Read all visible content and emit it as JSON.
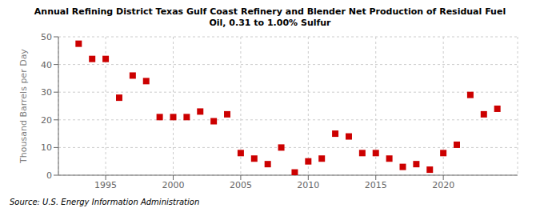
{
  "chart_data": {
    "type": "scatter",
    "title": "Annual Refining District Texas Gulf Coast Refinery and Blender Net Production of Residual Fuel\nOil, 0.31 to 1.00% Sulfur",
    "y_label": "Thousand Barrels per Day",
    "annotation": "Source: U.S. Energy Information Administration",
    "x": [
      1993,
      1994,
      1995,
      1996,
      1997,
      1998,
      1999,
      2000,
      2001,
      2002,
      2003,
      2004,
      2005,
      2006,
      2007,
      2008,
      2009,
      2010,
      2011,
      2012,
      2013,
      2014,
      2015,
      2016,
      2017,
      2018,
      2019,
      2020,
      2021,
      2022,
      2023,
      2024
    ],
    "values": [
      47.5,
      42.0,
      42.0,
      28.0,
      36.0,
      34.0,
      21.0,
      21.0,
      21.0,
      23.0,
      19.5,
      22.0,
      8.0,
      6.0,
      4.0,
      10.0,
      1.0,
      5.0,
      6.0,
      15.0,
      14.0,
      8.0,
      8.0,
      6.0,
      3.0,
      4.0,
      2.0,
      8.0,
      11.0,
      29.0,
      22.0,
      24.0
    ],
    "color": "#cc0000",
    "marker": "square",
    "xlim": [
      1991.5,
      2025.5
    ],
    "xticks": [
      1995,
      2000,
      2005,
      2010,
      2015,
      2020
    ],
    "ylim": [
      0,
      50
    ],
    "yticks": [
      0,
      10,
      20,
      30,
      40,
      50
    ],
    "grid": true
  }
}
